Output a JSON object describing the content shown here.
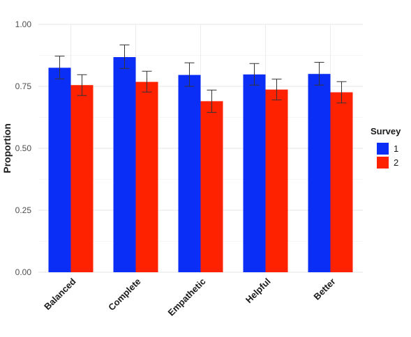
{
  "chart_data": {
    "type": "bar",
    "ylabel": "Proportion",
    "xlabel": "",
    "ylim": [
      0,
      1
    ],
    "yticks": [
      "0.00",
      "0.25",
      "0.50",
      "0.75",
      "1.00"
    ],
    "categories": [
      "Balanced",
      "Complete",
      "Empathetic",
      "Helpful",
      "Better"
    ],
    "legend": {
      "title": "Survey",
      "position": "right"
    },
    "grid": true,
    "series": [
      {
        "name": "1",
        "color": "#0a2ef5",
        "values": [
          0.825,
          0.868,
          0.796,
          0.798,
          0.8
        ],
        "error_low": [
          0.78,
          0.822,
          0.75,
          0.755,
          0.755
        ],
        "error_high": [
          0.872,
          0.917,
          0.845,
          0.842,
          0.847
        ]
      },
      {
        "name": "2",
        "color": "#ff2200",
        "values": [
          0.755,
          0.768,
          0.69,
          0.737,
          0.726
        ],
        "error_low": [
          0.713,
          0.727,
          0.645,
          0.695,
          0.683
        ],
        "error_high": [
          0.797,
          0.811,
          0.735,
          0.779,
          0.769
        ]
      }
    ]
  }
}
